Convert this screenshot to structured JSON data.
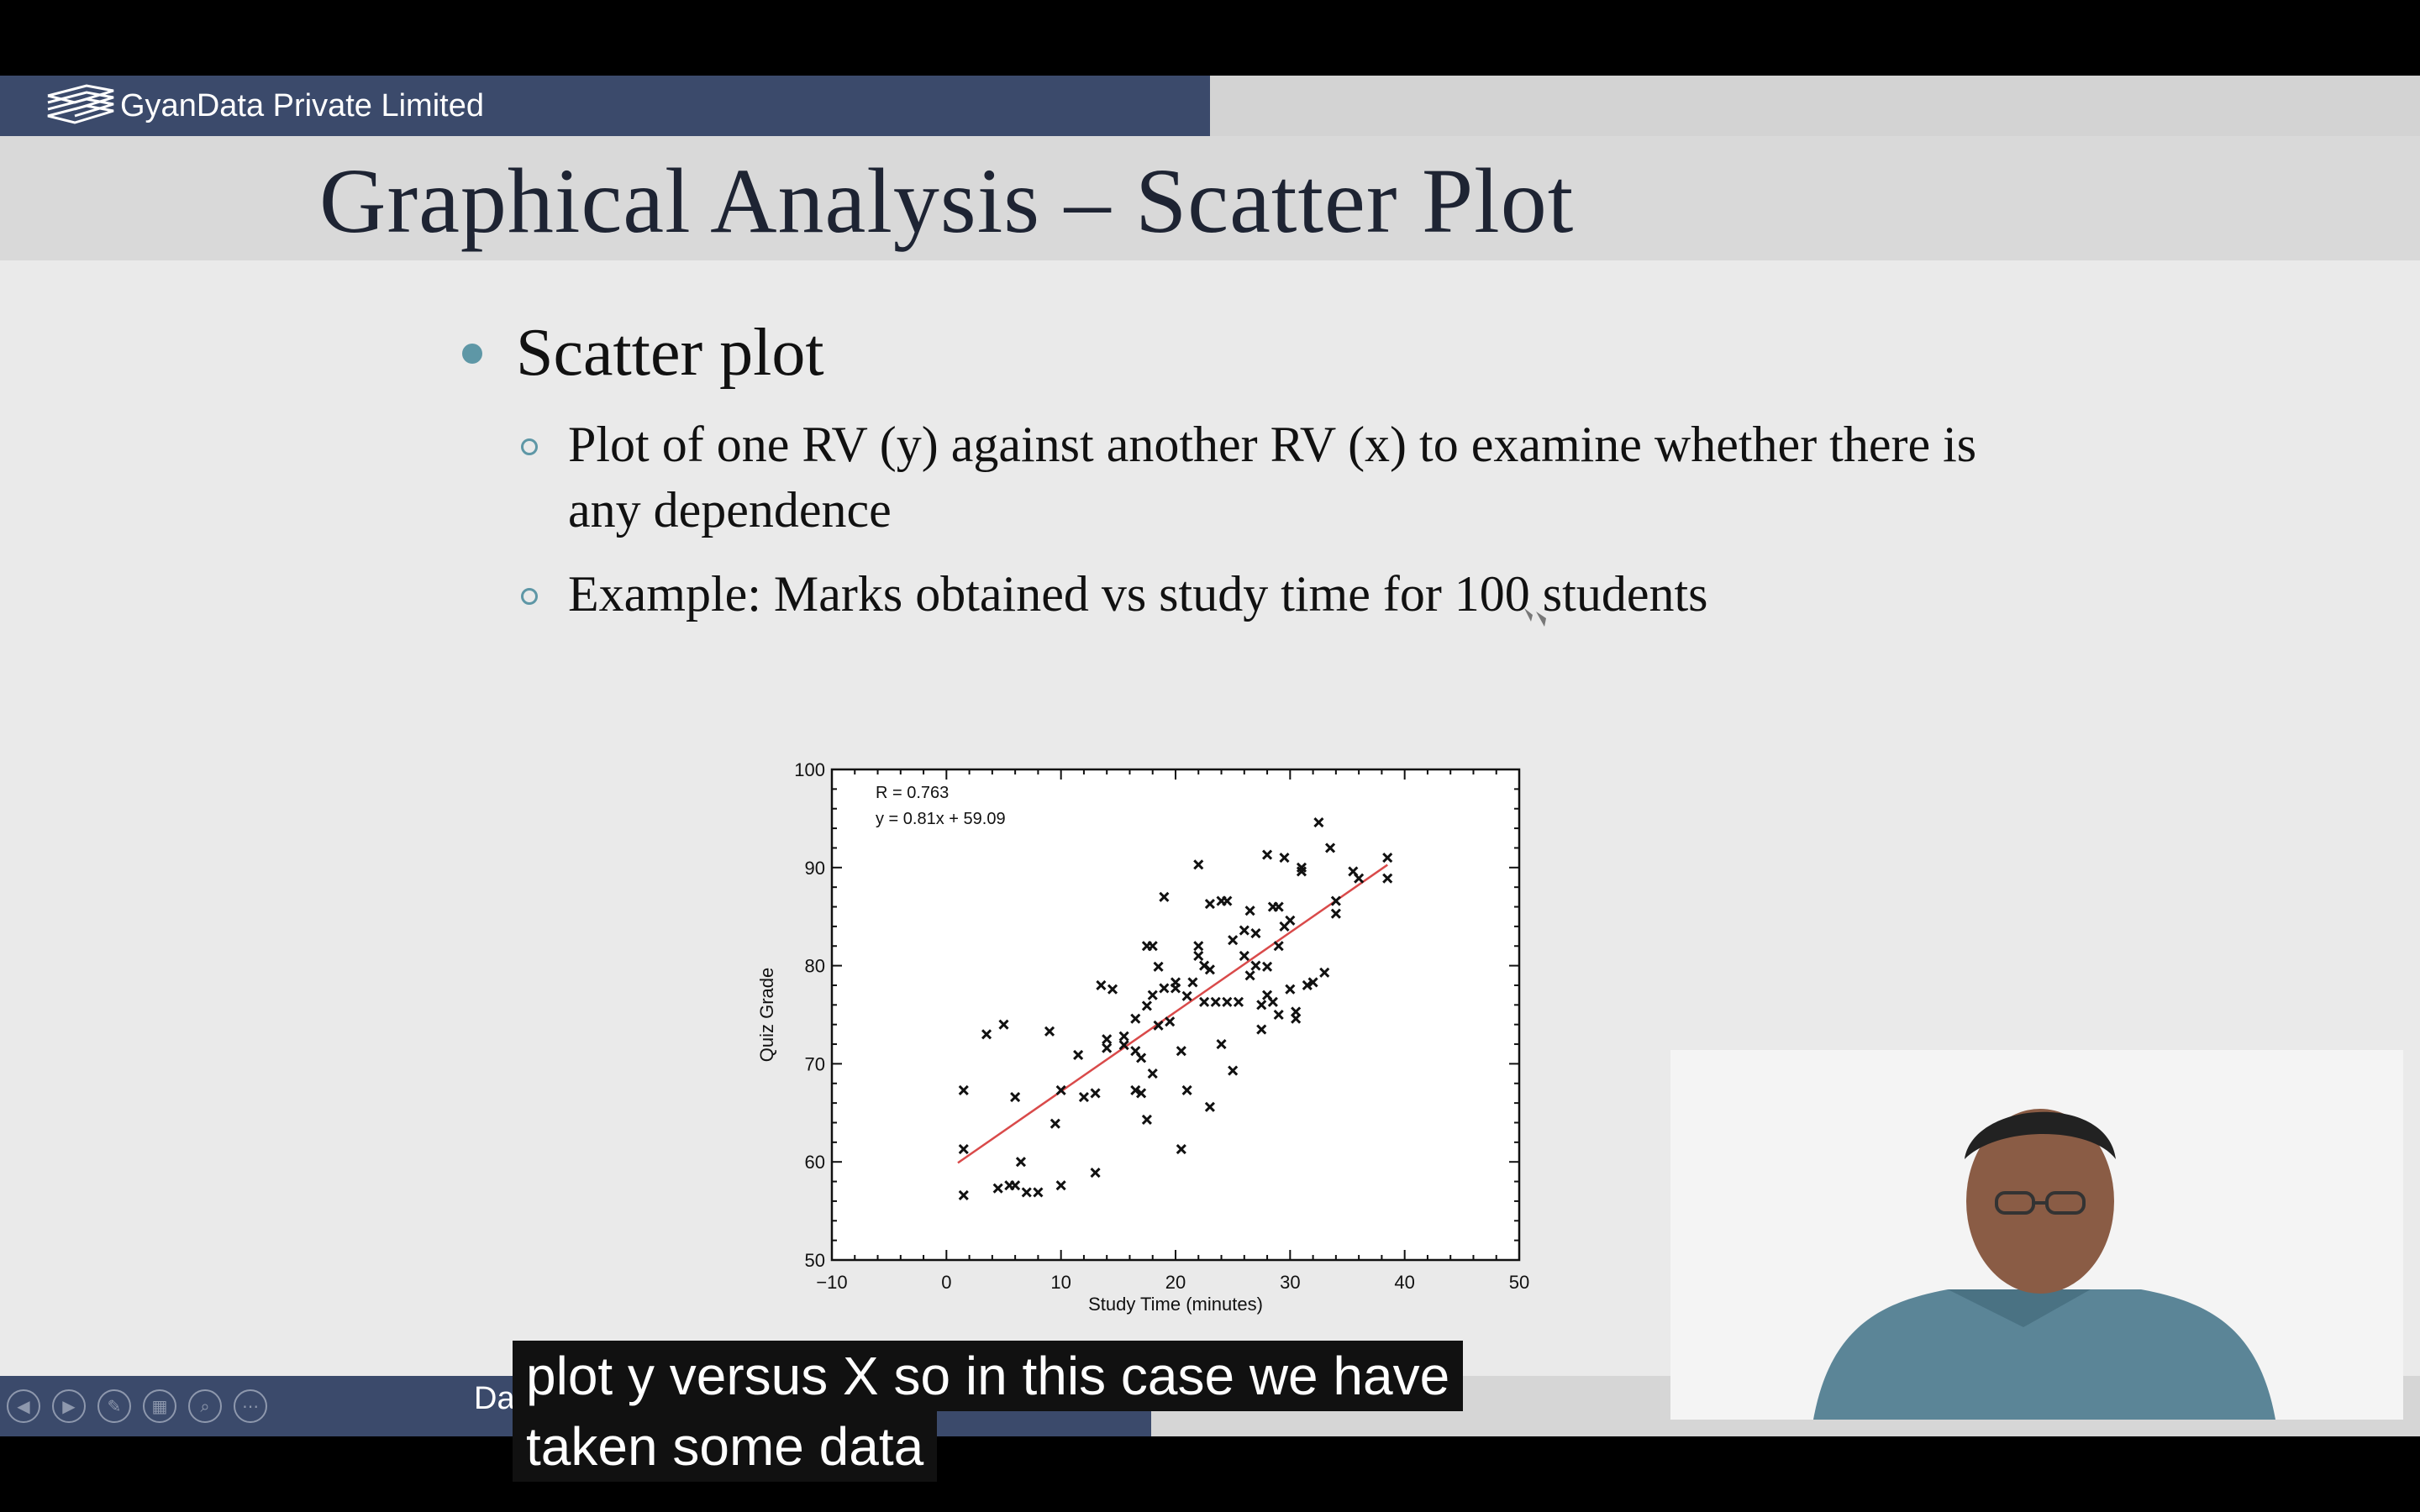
{
  "header": {
    "brand": "GyanData Private Limited"
  },
  "slide": {
    "title": "Graphical Analysis – Scatter Plot",
    "bullet": "Scatter plot",
    "sub_bullets": [
      "Plot of one RV (y) against another RV (x) to examine whether there is any dependence",
      "Example: Marks obtained vs study time for 100 students"
    ]
  },
  "footer": {
    "text": "Data Analytics",
    "nav_icons": [
      "prev-icon",
      "next-icon",
      "pen-icon",
      "slides-icon",
      "zoom-icon",
      "more-icon"
    ]
  },
  "caption": {
    "line1": "plot y versus X so in this case we have",
    "line2": "taken some data"
  },
  "colors": {
    "header_bar": "#3b4a6b",
    "fit_line": "#d94a4a",
    "bullet": "#5e97a6"
  },
  "chart_data": {
    "type": "scatter",
    "xlabel": "Study Time (minutes)",
    "ylabel": "Quiz Grade",
    "xlim": [
      -10,
      50
    ],
    "ylim": [
      50,
      100
    ],
    "xticks": [
      -10,
      0,
      10,
      20,
      30,
      40,
      50
    ],
    "yticks": [
      50,
      60,
      70,
      80,
      90,
      100
    ],
    "annotations": [
      "R = 0.763",
      "y = 0.81x + 59.09"
    ],
    "fit": {
      "slope": 0.81,
      "intercept": 59.09,
      "x_range": [
        1,
        38.5
      ]
    },
    "points": [
      [
        1.5,
        67.3
      ],
      [
        1.5,
        61.3
      ],
      [
        1.5,
        56.6
      ],
      [
        3.5,
        73
      ],
      [
        4.5,
        57.3
      ],
      [
        5,
        74
      ],
      [
        5.5,
        57.6
      ],
      [
        6,
        66.6
      ],
      [
        6.5,
        60
      ],
      [
        6,
        57.6
      ],
      [
        7,
        56.9
      ],
      [
        8,
        56.9
      ],
      [
        9,
        73.3
      ],
      [
        9.5,
        63.9
      ],
      [
        10,
        67.3
      ],
      [
        10,
        57.6
      ],
      [
        11.5,
        70.9
      ],
      [
        12,
        66.6
      ],
      [
        13,
        67
      ],
      [
        13,
        58.9
      ],
      [
        13.5,
        78
      ],
      [
        14,
        72.5
      ],
      [
        14,
        71.6
      ],
      [
        14.5,
        77.6
      ],
      [
        15.5,
        71.9
      ],
      [
        16.5,
        67.3
      ],
      [
        16.5,
        71.3
      ],
      [
        16.5,
        74.6
      ],
      [
        17,
        70.6
      ],
      [
        17,
        67
      ],
      [
        17.5,
        82
      ],
      [
        17.5,
        75.9
      ],
      [
        17.5,
        64.3
      ],
      [
        18,
        69
      ],
      [
        18,
        77
      ],
      [
        18,
        82
      ],
      [
        18.5,
        79.9
      ],
      [
        18.5,
        73.9
      ],
      [
        19,
        87
      ],
      [
        19,
        77.7
      ],
      [
        19.5,
        74.3
      ],
      [
        20,
        77.7
      ],
      [
        20.5,
        71.3
      ],
      [
        20.5,
        61.3
      ],
      [
        21,
        76.9
      ],
      [
        21,
        67.3
      ],
      [
        21.5,
        78.3
      ],
      [
        22,
        90.3
      ],
      [
        22,
        82
      ],
      [
        22,
        81
      ],
      [
        22.5,
        80
      ],
      [
        22.5,
        76.3
      ],
      [
        23,
        86.3
      ],
      [
        23,
        79.6
      ],
      [
        23,
        65.6
      ],
      [
        23.5,
        76.3
      ],
      [
        24,
        86.6
      ],
      [
        24,
        72
      ],
      [
        24.5,
        86.6
      ],
      [
        24.5,
        76.3
      ],
      [
        25,
        82.6
      ],
      [
        25,
        69.3
      ],
      [
        25.5,
        76.3
      ],
      [
        26,
        83.6
      ],
      [
        26,
        81
      ],
      [
        26.5,
        85.6
      ],
      [
        26.5,
        79
      ],
      [
        27,
        83.3
      ],
      [
        27,
        80
      ],
      [
        27.5,
        76
      ],
      [
        28,
        91.3
      ],
      [
        28,
        79.9
      ],
      [
        28,
        77
      ],
      [
        28.5,
        86
      ],
      [
        28.5,
        76.3
      ],
      [
        29,
        86
      ],
      [
        29,
        75
      ],
      [
        29,
        82
      ],
      [
        29.5,
        91
      ],
      [
        29.5,
        84
      ],
      [
        30,
        84.6
      ],
      [
        30,
        77.6
      ],
      [
        30.5,
        75.3
      ],
      [
        30.5,
        74.6
      ],
      [
        31,
        90
      ],
      [
        31,
        89.6
      ],
      [
        31.5,
        78
      ],
      [
        32,
        78.3
      ],
      [
        32.5,
        94.6
      ],
      [
        33,
        79.3
      ],
      [
        33.5,
        92
      ],
      [
        34,
        86.6
      ],
      [
        34,
        85.3
      ],
      [
        35.5,
        89.6
      ],
      [
        36,
        88.9
      ],
      [
        38.5,
        91
      ],
      [
        38.5,
        88.9
      ],
      [
        27.5,
        73.5
      ],
      [
        15.5,
        72.8
      ],
      [
        20,
        78.3
      ]
    ]
  }
}
